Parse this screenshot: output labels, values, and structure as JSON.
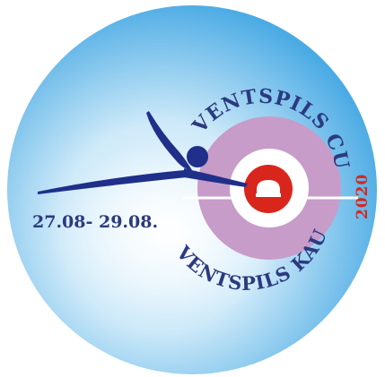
{
  "logo": {
    "arc_top_text": "VENTSPILS CUP",
    "arc_bottom_text": "VENTSPILS KAUSS",
    "year": "2020",
    "dates": "27.08- 29.08."
  },
  "colors": {
    "ink": "#2b3a80",
    "ring": "#c79cc9",
    "stone_red": "#d9261c",
    "sky_light": "#eaf6fd",
    "sky_mid": "#9fd4f2",
    "sky_dark": "#4aaae4",
    "player_blue": "#1f2f8a"
  }
}
